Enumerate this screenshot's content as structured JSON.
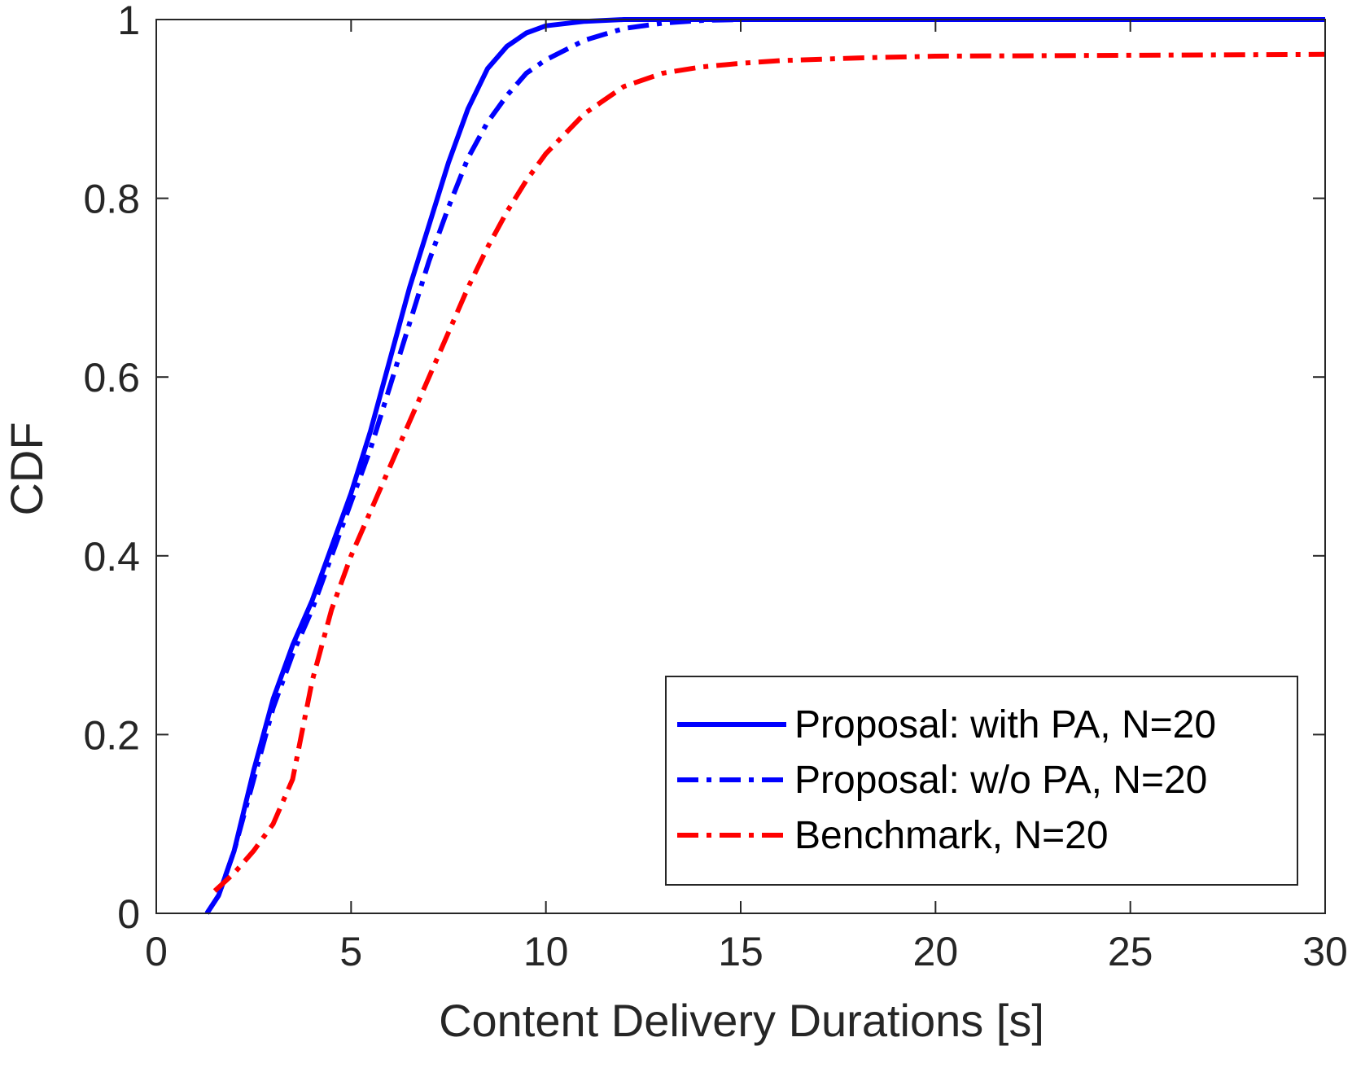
{
  "chart_data": {
    "type": "line",
    "title": "",
    "xlabel": "Content Delivery Durations [s]",
    "ylabel": "CDF",
    "xlim": [
      0,
      30
    ],
    "ylim": [
      0,
      1
    ],
    "xticks": [
      0,
      5,
      10,
      15,
      20,
      25,
      30
    ],
    "xtick_labels": [
      "0",
      "5",
      "10",
      "15",
      "20",
      "25",
      "30"
    ],
    "yticks": [
      0,
      0.2,
      0.4,
      0.6,
      0.8,
      1
    ],
    "ytick_labels": [
      "0",
      "0.2",
      "0.4",
      "0.6",
      "0.8",
      "1"
    ],
    "grid": false,
    "legend_position": "bottom-right",
    "series": [
      {
        "name": "Proposal: with PA, N=20",
        "color": "#0000ff",
        "style": "solid",
        "points": [
          [
            1.3,
            0
          ],
          [
            1.6,
            0.02
          ],
          [
            2,
            0.07
          ],
          [
            2.5,
            0.16
          ],
          [
            3,
            0.24
          ],
          [
            3.5,
            0.3
          ],
          [
            4,
            0.35
          ],
          [
            4.5,
            0.41
          ],
          [
            5,
            0.47
          ],
          [
            5.5,
            0.54
          ],
          [
            6,
            0.62
          ],
          [
            6.5,
            0.7
          ],
          [
            7,
            0.77
          ],
          [
            7.5,
            0.84
          ],
          [
            8,
            0.9
          ],
          [
            8.5,
            0.945
          ],
          [
            9,
            0.97
          ],
          [
            9.5,
            0.985
          ],
          [
            10,
            0.993
          ],
          [
            11,
            0.998
          ],
          [
            12,
            1
          ],
          [
            15,
            1
          ],
          [
            20,
            1
          ],
          [
            25,
            1
          ],
          [
            30,
            1
          ]
        ]
      },
      {
        "name": "Proposal: w/o PA, N=20",
        "color": "#0000ff",
        "style": "dashdot",
        "points": [
          [
            1.3,
            0
          ],
          [
            1.6,
            0.02
          ],
          [
            2,
            0.07
          ],
          [
            2.5,
            0.15
          ],
          [
            3,
            0.23
          ],
          [
            3.5,
            0.29
          ],
          [
            4,
            0.34
          ],
          [
            4.5,
            0.4
          ],
          [
            5,
            0.46
          ],
          [
            5.5,
            0.52
          ],
          [
            6,
            0.59
          ],
          [
            6.5,
            0.66
          ],
          [
            7,
            0.73
          ],
          [
            7.5,
            0.79
          ],
          [
            8,
            0.845
          ],
          [
            8.5,
            0.885
          ],
          [
            9,
            0.915
          ],
          [
            9.5,
            0.94
          ],
          [
            10,
            0.955
          ],
          [
            11,
            0.977
          ],
          [
            12,
            0.99
          ],
          [
            13,
            0.996
          ],
          [
            14,
            0.999
          ],
          [
            15,
            1
          ],
          [
            20,
            1
          ],
          [
            25,
            1
          ],
          [
            30,
            1
          ]
        ]
      },
      {
        "name": "Benchmark, N=20",
        "color": "#ff0000",
        "style": "dashdot",
        "points": [
          [
            1.5,
            0.025
          ],
          [
            2,
            0.045
          ],
          [
            2.5,
            0.07
          ],
          [
            3,
            0.1
          ],
          [
            3.5,
            0.15
          ],
          [
            4,
            0.26
          ],
          [
            4.5,
            0.34
          ],
          [
            5,
            0.4
          ],
          [
            5.5,
            0.45
          ],
          [
            6,
            0.5
          ],
          [
            6.5,
            0.55
          ],
          [
            7,
            0.6
          ],
          [
            7.5,
            0.65
          ],
          [
            8,
            0.7
          ],
          [
            8.5,
            0.745
          ],
          [
            9,
            0.785
          ],
          [
            9.5,
            0.82
          ],
          [
            10,
            0.85
          ],
          [
            11,
            0.895
          ],
          [
            12,
            0.925
          ],
          [
            13,
            0.94
          ],
          [
            14,
            0.947
          ],
          [
            15,
            0.951
          ],
          [
            16,
            0.954
          ],
          [
            18,
            0.957
          ],
          [
            20,
            0.959
          ],
          [
            25,
            0.96
          ],
          [
            30,
            0.961
          ]
        ]
      }
    ]
  }
}
